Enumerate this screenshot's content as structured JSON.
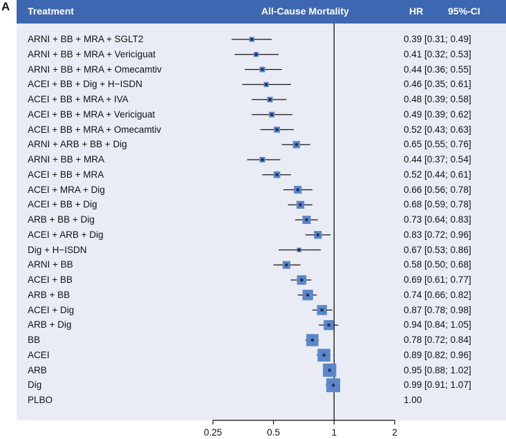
{
  "panel_label": "A",
  "header": {
    "treatment": "Treatment",
    "outcome": "All-Cause Mortality",
    "hr": "HR",
    "ci": "95%-CI"
  },
  "colors": {
    "header_bg": "#3d67b0",
    "plot_bg": "#e9ecf5",
    "box": "#5b86c9",
    "point": "#1f2f55"
  },
  "chart_data": {
    "type": "forest",
    "title": "All-Cause Mortality",
    "x_scale": "log",
    "xlim": [
      0.25,
      2
    ],
    "x_ticks": [
      0.25,
      0.5,
      1,
      2
    ],
    "x_tick_labels": [
      "0.25",
      "0.5",
      "1",
      "2"
    ],
    "reference_line": 1,
    "rows": [
      {
        "treatment": "ARNI + BB + MRA + SGLT2",
        "hr": 0.39,
        "lo": 0.31,
        "hi": 0.49,
        "text": "0.39 [0.31; 0.49]",
        "weight": 0.2
      },
      {
        "treatment": "ARNI + BB + MRA + Vericiguat",
        "hr": 0.41,
        "lo": 0.32,
        "hi": 0.53,
        "text": "0.41 [0.32; 0.53]",
        "weight": 0.2
      },
      {
        "treatment": "ARNI + BB + MRA + Omecamtiv",
        "hr": 0.44,
        "lo": 0.36,
        "hi": 0.55,
        "text": "0.44 [0.36; 0.55]",
        "weight": 0.25
      },
      {
        "treatment": "ACEI + BB + Dig + H−ISDN",
        "hr": 0.46,
        "lo": 0.35,
        "hi": 0.61,
        "text": "0.46 [0.35; 0.61]",
        "weight": 0.2
      },
      {
        "treatment": "ACEI + BB + MRA + IVA",
        "hr": 0.48,
        "lo": 0.39,
        "hi": 0.58,
        "text": "0.48 [0.39; 0.58]",
        "weight": 0.25
      },
      {
        "treatment": "ACEI + BB + MRA + Vericiguat",
        "hr": 0.49,
        "lo": 0.39,
        "hi": 0.62,
        "text": "0.49 [0.39; 0.62]",
        "weight": 0.25
      },
      {
        "treatment": "ACEI + BB + MRA + Omecamtiv",
        "hr": 0.52,
        "lo": 0.43,
        "hi": 0.63,
        "text": "0.52 [0.43; 0.63]",
        "weight": 0.3
      },
      {
        "treatment": "ARNI + ARB + BB + Dig",
        "hr": 0.65,
        "lo": 0.55,
        "hi": 0.76,
        "text": "0.65 [0.55; 0.76]",
        "weight": 0.4
      },
      {
        "treatment": "ARNI + BB + MRA",
        "hr": 0.44,
        "lo": 0.37,
        "hi": 0.54,
        "text": "0.44 [0.37; 0.54]",
        "weight": 0.25
      },
      {
        "treatment": "ACEI + BB + MRA",
        "hr": 0.52,
        "lo": 0.44,
        "hi": 0.61,
        "text": "0.52 [0.44; 0.61]",
        "weight": 0.35
      },
      {
        "treatment": "ACEI + MRA + Dig",
        "hr": 0.66,
        "lo": 0.56,
        "hi": 0.78,
        "text": "0.66 [0.56; 0.78]",
        "weight": 0.45
      },
      {
        "treatment": "ACEI + BB + Dig",
        "hr": 0.68,
        "lo": 0.59,
        "hi": 0.78,
        "text": "0.68 [0.59; 0.78]",
        "weight": 0.45
      },
      {
        "treatment": "ARB + BB + Dig",
        "hr": 0.73,
        "lo": 0.64,
        "hi": 0.83,
        "text": "0.73 [0.64; 0.83]",
        "weight": 0.5
      },
      {
        "treatment": "ACEI + ARB + Dig",
        "hr": 0.83,
        "lo": 0.72,
        "hi": 0.96,
        "text": "0.83 [0.72; 0.96]",
        "weight": 0.45
      },
      {
        "treatment": "Dig + H−ISDN",
        "hr": 0.67,
        "lo": 0.53,
        "hi": 0.86,
        "text": "0.67 [0.53; 0.86]",
        "weight": 0.15
      },
      {
        "treatment": "ARNI + BB",
        "hr": 0.58,
        "lo": 0.5,
        "hi": 0.68,
        "text": "0.58 [0.50; 0.68]",
        "weight": 0.45
      },
      {
        "treatment": "ACEI + BB",
        "hr": 0.69,
        "lo": 0.61,
        "hi": 0.77,
        "text": "0.69 [0.61; 0.77]",
        "weight": 0.6
      },
      {
        "treatment": "ARB + BB",
        "hr": 0.74,
        "lo": 0.66,
        "hi": 0.82,
        "text": "0.74 [0.66; 0.82]",
        "weight": 0.7
      },
      {
        "treatment": "ACEI + Dig",
        "hr": 0.87,
        "lo": 0.78,
        "hi": 0.98,
        "text": "0.87 [0.78; 0.98]",
        "weight": 0.65
      },
      {
        "treatment": "ARB + Dig",
        "hr": 0.94,
        "lo": 0.84,
        "hi": 1.05,
        "text": "0.94 [0.84; 1.05]",
        "weight": 0.65
      },
      {
        "treatment": "BB",
        "hr": 0.78,
        "lo": 0.72,
        "hi": 0.84,
        "text": "0.78 [0.72; 0.84]",
        "weight": 0.85
      },
      {
        "treatment": "ACEI",
        "hr": 0.89,
        "lo": 0.82,
        "hi": 0.96,
        "text": "0.89 [0.82; 0.96]",
        "weight": 0.9
      },
      {
        "treatment": "ARB",
        "hr": 0.95,
        "lo": 0.88,
        "hi": 1.02,
        "text": "0.95 [0.88; 1.02]",
        "weight": 0.95
      },
      {
        "treatment": "Dig",
        "hr": 0.99,
        "lo": 0.91,
        "hi": 1.07,
        "text": "0.99 [0.91; 1.07]",
        "weight": 1.0
      },
      {
        "treatment": "PLBO",
        "hr": 1.0,
        "lo": null,
        "hi": null,
        "text": "1.00",
        "weight": 0
      }
    ]
  }
}
